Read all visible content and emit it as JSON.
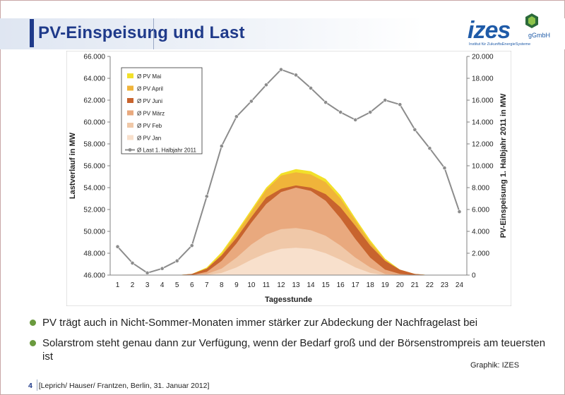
{
  "slide": {
    "title": "PV-Einspeisung und Last",
    "page_number": "4",
    "footer_text": "[Leprich/ Hauser/ Frantzen, Berlin, 31. Januar 2012]",
    "credit": "Graphik: IZES",
    "bullets": [
      "PV trägt auch in Nicht-Sommer-Monaten immer stärker zur Abdeckung der Nachfragelast bei",
      "Solarstrom steht genau dann zur Verfügung, wenn der Bedarf groß und der Börsenstrompreis am teuersten ist"
    ]
  },
  "logo": {
    "name": "izes",
    "suffix": "gGmbH",
    "tagline": "Institut für ZukunftsEnergieSysteme"
  },
  "colors": {
    "title": "#1f3a8a",
    "bullet": "#6a9a3e",
    "pv_mai": "#f2e02a",
    "pv_april": "#f0b43a",
    "pv_juni": "#c8642e",
    "pv_maerz": "#e9a97e",
    "pv_feb": "#f0c8a8",
    "pv_jan": "#f8e0cc",
    "last": "#8c8c8c"
  },
  "chart_data": {
    "type": "area",
    "xlabel": "Tagesstunde",
    "ylabel_left": "Lastverlauf in MW",
    "ylabel_right": "PV-Einspeisung 1. Halbjahr 2011 in MW",
    "x": [
      1,
      2,
      3,
      4,
      5,
      6,
      7,
      8,
      9,
      10,
      11,
      12,
      13,
      14,
      15,
      16,
      17,
      18,
      19,
      20,
      21,
      22,
      23,
      24
    ],
    "left_axis": {
      "ylim": [
        46000,
        66000
      ],
      "ticks": [
        "46.000",
        "48.000",
        "50.000",
        "52.000",
        "54.000",
        "56.000",
        "58.000",
        "60.000",
        "62.000",
        "64.000",
        "66.000"
      ]
    },
    "right_axis": {
      "ylim": [
        0,
        20000
      ],
      "ticks": [
        "0",
        "2.000",
        "4.000",
        "6.000",
        "8.000",
        "10.000",
        "12.000",
        "14.000",
        "16.000",
        "18.000",
        "20.000"
      ]
    },
    "legend_position": "top-left",
    "pv_series": [
      {
        "name": "Ø PV Mai",
        "values": [
          0,
          0,
          0,
          0,
          0,
          100,
          700,
          2100,
          4000,
          6000,
          8000,
          9300,
          9700,
          9500,
          8800,
          7300,
          5200,
          3200,
          1500,
          500,
          100,
          0,
          0,
          0
        ]
      },
      {
        "name": "Ø PV April",
        "values": [
          0,
          0,
          0,
          0,
          0,
          100,
          600,
          1900,
          3800,
          5800,
          7800,
          9100,
          9400,
          9200,
          8500,
          7000,
          5000,
          3000,
          1400,
          400,
          100,
          0,
          0,
          0
        ]
      },
      {
        "name": "Ø PV Juni",
        "values": [
          0,
          0,
          0,
          0,
          0,
          100,
          600,
          1800,
          3400,
          5300,
          7100,
          7900,
          8200,
          8000,
          7400,
          6200,
          4500,
          2700,
          1300,
          500,
          100,
          0,
          0,
          0
        ]
      },
      {
        "name": "Ø PV März",
        "values": [
          0,
          0,
          0,
          0,
          0,
          0,
          300,
          1300,
          2900,
          4800,
          6500,
          7600,
          8000,
          7700,
          6800,
          5200,
          3300,
          1600,
          500,
          100,
          0,
          0,
          0,
          0
        ]
      },
      {
        "name": "Ø PV Feb",
        "values": [
          0,
          0,
          0,
          0,
          0,
          0,
          100,
          600,
          1600,
          2800,
          3700,
          4200,
          4300,
          4100,
          3600,
          2700,
          1600,
          700,
          100,
          0,
          0,
          0,
          0,
          0
        ]
      },
      {
        "name": "Ø PV Jan",
        "values": [
          0,
          0,
          0,
          0,
          0,
          0,
          0,
          200,
          700,
          1400,
          2000,
          2400,
          2500,
          2400,
          2000,
          1400,
          700,
          200,
          0,
          0,
          0,
          0,
          0,
          0
        ]
      }
    ],
    "line_series": {
      "name": "Ø Last 1. Halbjahr 2011",
      "values": [
        48600,
        47100,
        46200,
        46600,
        47300,
        48700,
        53200,
        57800,
        60500,
        61900,
        63400,
        64800,
        64300,
        63100,
        61800,
        60900,
        60200,
        60900,
        62000,
        61600,
        59300,
        57600,
        55800,
        51800
      ]
    }
  }
}
